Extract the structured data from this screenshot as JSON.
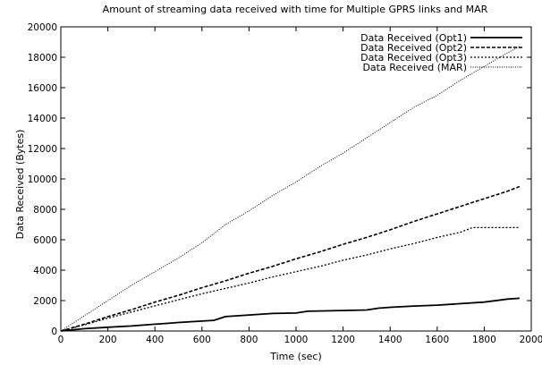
{
  "chart_data": {
    "type": "line",
    "title": "Amount of streaming data received with time for Multiple GPRS links and MAR",
    "xlabel": "Time (sec)",
    "ylabel": "Data Received (Bytes)",
    "xlim": [
      0,
      2000
    ],
    "ylim": [
      0,
      20000
    ],
    "xticks": [
      0,
      200,
      400,
      600,
      800,
      1000,
      1200,
      1400,
      1600,
      1800,
      2000
    ],
    "yticks": [
      0,
      2000,
      4000,
      6000,
      8000,
      10000,
      12000,
      14000,
      16000,
      18000,
      20000
    ],
    "grid": false,
    "legend_position": "top-right",
    "series": [
      {
        "name": "Data Received (Opt1)",
        "style": "solid",
        "x": [
          0,
          100,
          200,
          300,
          400,
          450,
          500,
          600,
          650,
          700,
          800,
          900,
          1000,
          1050,
          1100,
          1200,
          1300,
          1350,
          1400,
          1500,
          1600,
          1700,
          1800,
          1900,
          1950
        ],
        "y": [
          0,
          150,
          250,
          330,
          450,
          500,
          560,
          650,
          700,
          950,
          1050,
          1150,
          1180,
          1300,
          1320,
          1350,
          1380,
          1500,
          1560,
          1640,
          1700,
          1800,
          1900,
          2100,
          2150
        ]
      },
      {
        "name": "Data Received (Opt2)",
        "style": "dashed",
        "x": [
          0,
          100,
          200,
          300,
          400,
          500,
          600,
          700,
          800,
          900,
          1000,
          1100,
          1200,
          1300,
          1400,
          1500,
          1600,
          1700,
          1800,
          1900,
          1950
        ],
        "y": [
          0,
          450,
          950,
          1400,
          1900,
          2350,
          2850,
          3300,
          3800,
          4250,
          4750,
          5200,
          5700,
          6150,
          6650,
          7200,
          7700,
          8200,
          8700,
          9200,
          9500
        ]
      },
      {
        "name": "Data Received (Opt3)",
        "style": "dotted",
        "x": [
          0,
          100,
          200,
          300,
          400,
          500,
          600,
          700,
          800,
          900,
          1000,
          1100,
          1200,
          1300,
          1400,
          1500,
          1600,
          1700,
          1750,
          1800,
          1900,
          1950
        ],
        "y": [
          0,
          400,
          850,
          1250,
          1650,
          2050,
          2450,
          2800,
          3150,
          3550,
          3900,
          4250,
          4650,
          5000,
          5400,
          5750,
          6150,
          6500,
          6800,
          6800,
          6800,
          6800
        ]
      },
      {
        "name": "Data Received (MAR)",
        "style": "sparse-dotted",
        "x": [
          0,
          100,
          200,
          300,
          400,
          500,
          600,
          700,
          800,
          900,
          1000,
          1100,
          1200,
          1300,
          1400,
          1500,
          1600,
          1700,
          1800,
          1900,
          1950
        ],
        "y": [
          0,
          1000,
          2000,
          3000,
          3900,
          4800,
          5800,
          7000,
          7900,
          8900,
          9800,
          10800,
          11700,
          12700,
          13700,
          14700,
          15500,
          16500,
          17400,
          18300,
          18700
        ]
      }
    ]
  }
}
